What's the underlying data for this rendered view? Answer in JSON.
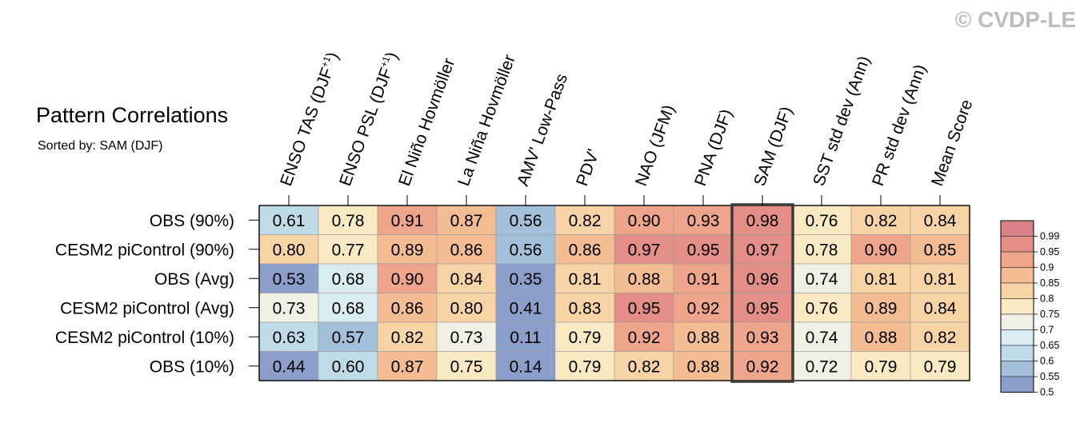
{
  "watermark": "© CVDP-LE",
  "title": "Pattern Correlations",
  "subtitle": "Sorted by: SAM (DJF)",
  "chart_data": {
    "type": "heatmap",
    "columns": [
      {
        "pre": "ENSO TAS (DJF",
        "sup": "+1",
        "post": ")"
      },
      {
        "pre": "ENSO PSL (DJF",
        "sup": "+1",
        "post": ")"
      },
      {
        "pre": "El Niño Hovmöller",
        "sup": "",
        "post": ""
      },
      {
        "pre": "La Niña Hovmöller",
        "sup": "",
        "post": ""
      },
      {
        "pre": "AMV' Low-Pass",
        "sup": "",
        "post": ""
      },
      {
        "pre": "PDV'",
        "sup": "",
        "post": ""
      },
      {
        "pre": "NAO (JFM)",
        "sup": "",
        "post": ""
      },
      {
        "pre": "PNA (DJF)",
        "sup": "",
        "post": ""
      },
      {
        "pre": "SAM (DJF)",
        "sup": "",
        "post": ""
      },
      {
        "pre": "SST std dev (Ann)",
        "sup": "",
        "post": ""
      },
      {
        "pre": "PR std dev (Ann)",
        "sup": "",
        "post": ""
      },
      {
        "pre": "Mean Score",
        "sup": "",
        "post": ""
      }
    ],
    "rows": [
      "OBS (90%)",
      "CESM2 piControl (90%)",
      "OBS (Avg)",
      "CESM2 piControl (Avg)",
      "CESM2 piControl (10%)",
      "OBS (10%)"
    ],
    "values": [
      [
        "0.61",
        "0.78",
        "0.91",
        "0.87",
        "0.56",
        "0.82",
        "0.90",
        "0.93",
        "0.98",
        "0.76",
        "0.82",
        "0.84"
      ],
      [
        "0.80",
        "0.77",
        "0.89",
        "0.86",
        "0.56",
        "0.86",
        "0.97",
        "0.95",
        "0.97",
        "0.78",
        "0.90",
        "0.85"
      ],
      [
        "0.53",
        "0.68",
        "0.90",
        "0.84",
        "0.35",
        "0.81",
        "0.88",
        "0.91",
        "0.96",
        "0.74",
        "0.81",
        "0.81"
      ],
      [
        "0.73",
        "0.68",
        "0.86",
        "0.80",
        "0.41",
        "0.83",
        "0.95",
        "0.92",
        "0.95",
        "0.76",
        "0.89",
        "0.84"
      ],
      [
        "0.63",
        "0.57",
        "0.82",
        "0.73",
        "0.11",
        "0.79",
        "0.92",
        "0.88",
        "0.93",
        "0.74",
        "0.88",
        "0.82"
      ],
      [
        "0.44",
        "0.60",
        "0.87",
        "0.75",
        "0.14",
        "0.79",
        "0.82",
        "0.88",
        "0.92",
        "0.72",
        "0.79",
        "0.79"
      ]
    ],
    "highlight_column": "SAM (DJF)",
    "colorbar": {
      "labels": [
        "0.99",
        "0.95",
        "0.9",
        "0.85",
        "0.8",
        "0.75",
        "0.7",
        "0.65",
        "0.6",
        "0.55",
        "0.5"
      ],
      "colors": [
        "#d78088",
        "#e38f87",
        "#efa58c",
        "#f4bc93",
        "#f8d3a6",
        "#faeac4",
        "#f0f1e4",
        "#d9ecf1",
        "#bfdbe8",
        "#a4bfd9",
        "#8c9fcb"
      ]
    }
  }
}
